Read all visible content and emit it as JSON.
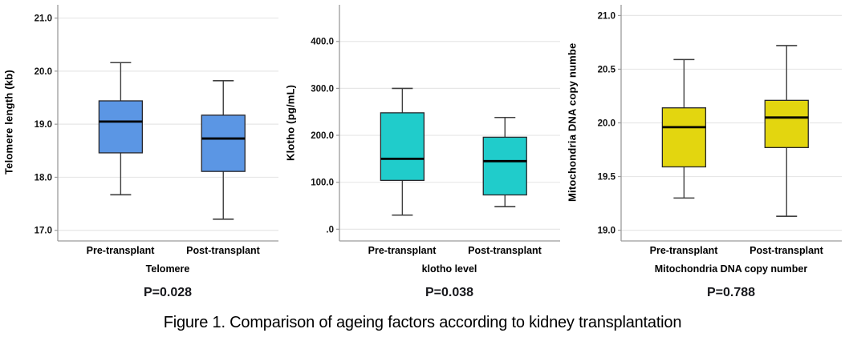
{
  "caption": "Figure 1. Comparison of ageing factors according to kidney transplantation",
  "colors": {
    "grid": "#e7e7e7",
    "axis": "#9b9b9b",
    "whisker": "#3f3f3f",
    "box_stroke": "#26262b",
    "median": "#000000",
    "tick_text": "#111111",
    "p_value_text": "#17181c",
    "telomere_box": "#5B96E4",
    "klotho_box": "#20CCCB",
    "mito_box": "#E3D60F"
  },
  "chart_data": [
    {
      "type": "box",
      "ylabel": "Telomere length (kb)",
      "xlabel": "Telomere",
      "p_label": "P=0.028",
      "categories": [
        "Pre-transplant",
        "Post-transplant"
      ],
      "ylim": [
        16.8,
        21.25
      ],
      "ytick_values": [
        21.0,
        20.0,
        19.0,
        18.0,
        17.0
      ],
      "ytick_labels": [
        "21.0",
        "20.0",
        "19.0",
        "18.0",
        "17.0"
      ],
      "box_color": "#5B96E4",
      "series": [
        {
          "name": "Pre-transplant",
          "min": 17.67,
          "q1": 18.46,
          "median": 19.05,
          "q3": 19.44,
          "max": 20.16
        },
        {
          "name": "Post-transplant",
          "min": 17.21,
          "q1": 18.11,
          "median": 18.73,
          "q3": 19.17,
          "max": 19.82
        }
      ]
    },
    {
      "type": "box",
      "ylabel": "Klotho (pg/mL)",
      "xlabel": "klotho level",
      "p_label": "P=0.038",
      "categories": [
        "Pre-transplant",
        "Post-transplant"
      ],
      "ylim": [
        -25,
        478
      ],
      "ytick_values": [
        400,
        300,
        200,
        100,
        0
      ],
      "ytick_labels": [
        "400.0",
        "300.0",
        "200.0",
        "100.0",
        ".0"
      ],
      "box_color": "#20CCCB",
      "series": [
        {
          "name": "Pre-transplant",
          "min": 30,
          "q1": 104,
          "median": 150,
          "q3": 248,
          "max": 300
        },
        {
          "name": "Post-transplant",
          "min": 48,
          "q1": 73,
          "median": 145,
          "q3": 196,
          "max": 238
        }
      ]
    },
    {
      "type": "box",
      "ylabel": "Mitochondria DNA copy numbe",
      "xlabel": "Mitochondria DNA copy number",
      "p_label": "P=0.788",
      "categories": [
        "Pre-transplant",
        "Post-transplant"
      ],
      "ylim": [
        18.9,
        21.1
      ],
      "ytick_values": [
        21.0,
        20.5,
        20.0,
        19.5,
        19.0
      ],
      "ytick_labels": [
        "21.0",
        "20.5",
        "20.0",
        "19.5",
        "19.0"
      ],
      "box_color": "#E3D60F",
      "series": [
        {
          "name": "Pre-transplant",
          "min": 19.3,
          "q1": 19.59,
          "median": 19.96,
          "q3": 20.14,
          "max": 20.59
        },
        {
          "name": "Post-transplant",
          "min": 19.13,
          "q1": 19.77,
          "median": 20.05,
          "q3": 20.21,
          "max": 20.72
        }
      ]
    }
  ]
}
